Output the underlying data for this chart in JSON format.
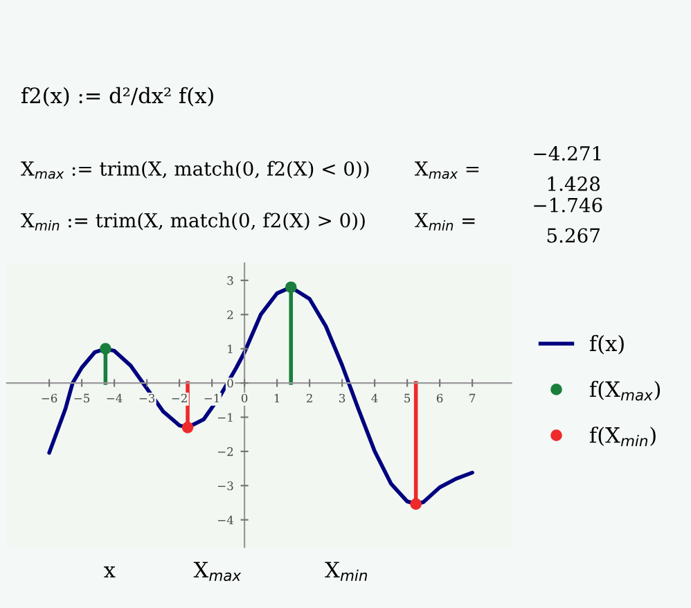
{
  "chart_data": {
    "type": "line",
    "annotations": [
      "f2(x) := d²/dx² f(x)",
      "X$_{max}$ := trim(X, match(0, f2(X) < 0))",
      "X$_{max}$ =",
      "−4.271",
      "1.428",
      "X$_{min}$ := trim(X, match(0, f2(X) > 0))",
      "X$_{min}$ =",
      "−1.746",
      "5.267",
      "x",
      "X$_{max}$",
      "X$_{min}$"
    ],
    "series": [
      {
        "name": "f(x)",
        "color": "#00007f",
        "x": [
          -6,
          -5.5,
          -5.28,
          -5,
          -4.6,
          -4.271,
          -4,
          -3.5,
          -3,
          -2.5,
          -2,
          -1.746,
          -1.25,
          -0.75,
          -0.25,
          0,
          0.5,
          1,
          1.428,
          2,
          2.5,
          3,
          3.5,
          4,
          4.5,
          5,
          5.267,
          5.5,
          6,
          6.5,
          7
        ],
        "values": [
          -2.04,
          -0.75,
          0,
          0.45,
          0.9,
          1.0,
          0.94,
          0.51,
          -0.16,
          -0.83,
          -1.24,
          -1.3,
          -1.06,
          -0.38,
          0.45,
          0.9,
          2.0,
          2.62,
          2.8,
          2.46,
          1.66,
          0.52,
          -0.76,
          -1.99,
          -2.94,
          -3.46,
          -3.54,
          -3.48,
          -3.05,
          -2.8,
          -2.62
        ]
      },
      {
        "name": "f(X$_{max}$)",
        "type": "lollipop",
        "marker": "circle",
        "color": "#1a7f3c",
        "x": [
          -4.271,
          1.428
        ],
        "values": [
          1.0,
          2.8
        ]
      },
      {
        "name": "f(X$_{min}$)",
        "type": "lollipop",
        "marker": "circle",
        "color": "#ee2a2a",
        "x": [
          -1.746,
          5.267
        ],
        "values": [
          -1.3,
          -3.54
        ]
      }
    ],
    "xlim": [
      -7.3,
      8.2
    ],
    "ylim": [
      -4.8,
      3.5
    ],
    "xticks": [
      -6,
      -5,
      -4,
      -3,
      -2,
      -1,
      0,
      1,
      2,
      3,
      4,
      5,
      6,
      7
    ],
    "yticks": [
      -4,
      -3,
      -2,
      -1,
      0,
      1,
      2,
      3
    ],
    "legend": "right"
  }
}
